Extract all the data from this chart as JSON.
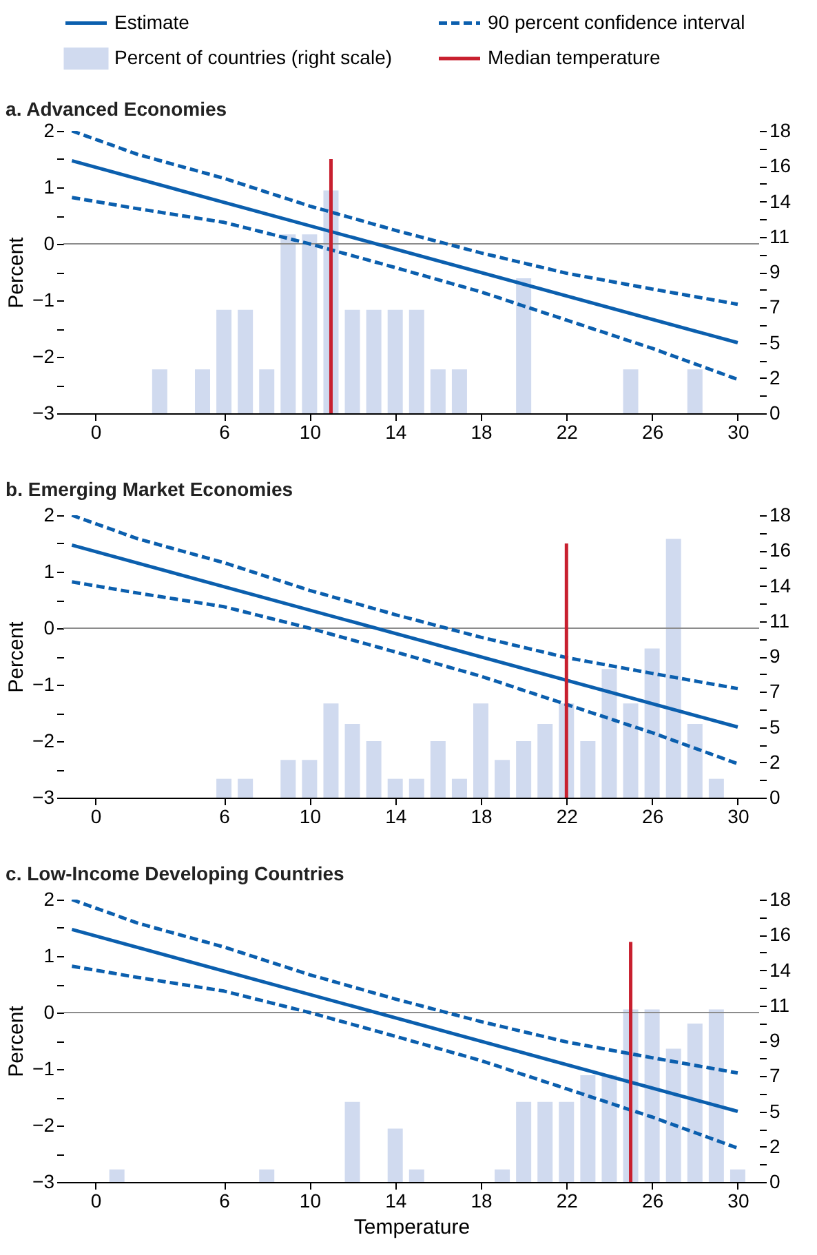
{
  "chart_data": [
    {
      "type": "line",
      "title": "a. Advanced Economies",
      "ylabel": "Percent",
      "legend": "top",
      "xlim": [
        -1.5,
        31
      ],
      "xticks": [
        0,
        6,
        10,
        14,
        18,
        22,
        26,
        30
      ],
      "ylim": [
        -3,
        2
      ],
      "yticks": [
        -3,
        {
          "value": -2.5,
          "label": null
        },
        -2,
        {
          "value": -1.5,
          "label": null
        },
        -1,
        {
          "value": -0.5,
          "label": null
        },
        0,
        {
          "value": 0.5,
          "label": null
        },
        1,
        {
          "value": 1.5,
          "label": null
        },
        2
      ],
      "y2lim": [
        0,
        18
      ],
      "y2ticks": [
        0,
        {
          "value": 1.125,
          "label": null
        },
        {
          "value": 2.25,
          "label": "2"
        },
        {
          "value": 3.375,
          "label": null
        },
        {
          "value": 4.5,
          "label": "5"
        },
        {
          "value": 5.625,
          "label": null
        },
        {
          "value": 6.75,
          "label": "7"
        },
        {
          "value": 7.875,
          "label": null
        },
        9,
        {
          "value": 10.125,
          "label": null
        },
        {
          "value": 11.25,
          "label": "11"
        },
        {
          "value": 12.375,
          "label": null
        },
        {
          "value": 13.5,
          "label": "14"
        },
        {
          "value": 14.625,
          "label": null
        },
        {
          "value": 15.75,
          "label": "16"
        },
        {
          "value": 16.875,
          "label": null
        },
        18
      ],
      "ref_lines": [
        {
          "axis": "y",
          "value": 0,
          "color": "#8c8c8c"
        }
      ],
      "series": [
        {
          "name": "Estimate",
          "color": "#0b5fae",
          "x": [
            -1.1,
            30
          ],
          "values": [
            1.47,
            -1.75
          ]
        },
        {
          "name": "90 percent confidence interval",
          "line_style": "dashed",
          "color": "#0b5fae",
          "x": [
            -1.1,
            2,
            6,
            10,
            14,
            18,
            22,
            26,
            30
          ],
          "values": [
            2.0,
            1.58,
            1.16,
            0.67,
            0.24,
            -0.16,
            -0.52,
            -0.8,
            -1.07
          ]
        },
        {
          "line_style": "dashed",
          "color": "#0b5fae",
          "x": [
            -1.1,
            2,
            6,
            10,
            14,
            18,
            22,
            26,
            30
          ],
          "values": [
            0.82,
            0.62,
            0.38,
            0.0,
            -0.42,
            -0.85,
            -1.35,
            -1.85,
            -2.4
          ]
        },
        {
          "name": "Percent of countries (right scale)",
          "type": "bar",
          "axis": "y2",
          "color": "#d0daef",
          "x": [
            3,
            5,
            6,
            7,
            8,
            9,
            10,
            11,
            12,
            13,
            14,
            15,
            16,
            17,
            20,
            25,
            28
          ],
          "values": [
            2.8,
            2.8,
            6.6,
            6.6,
            2.8,
            11.4,
            11.4,
            14.2,
            6.6,
            6.6,
            6.6,
            6.6,
            2.8,
            2.8,
            8.6,
            2.8,
            2.8
          ]
        },
        {
          "name": "Median temperature",
          "color": "#c8202f",
          "x": [
            11,
            11
          ],
          "values": [
            -3,
            1.5
          ]
        }
      ]
    },
    {
      "type": "line",
      "title": "b. Emerging Market Economies",
      "ylabel": "Percent",
      "xlim": [
        -1.5,
        31
      ],
      "xticks": [
        0,
        6,
        10,
        14,
        18,
        22,
        26,
        30
      ],
      "ylim": [
        -3,
        2
      ],
      "yticks": [
        -3,
        {
          "value": -2.5,
          "label": null
        },
        -2,
        {
          "value": -1.5,
          "label": null
        },
        -1,
        {
          "value": -0.5,
          "label": null
        },
        0,
        {
          "value": 0.5,
          "label": null
        },
        1,
        {
          "value": 1.5,
          "label": null
        },
        2
      ],
      "y2lim": [
        0,
        18
      ],
      "y2ticks": [
        0,
        {
          "value": 1.125,
          "label": null
        },
        {
          "value": 2.25,
          "label": "2"
        },
        {
          "value": 3.375,
          "label": null
        },
        {
          "value": 4.5,
          "label": "5"
        },
        {
          "value": 5.625,
          "label": null
        },
        {
          "value": 6.75,
          "label": "7"
        },
        {
          "value": 7.875,
          "label": null
        },
        9,
        {
          "value": 10.125,
          "label": null
        },
        {
          "value": 11.25,
          "label": "11"
        },
        {
          "value": 12.375,
          "label": null
        },
        {
          "value": 13.5,
          "label": "14"
        },
        {
          "value": 14.625,
          "label": null
        },
        {
          "value": 15.75,
          "label": "16"
        },
        {
          "value": 16.875,
          "label": null
        },
        18
      ],
      "ref_lines": [
        {
          "axis": "y",
          "value": 0,
          "color": "#8c8c8c"
        }
      ],
      "series": [
        {
          "color": "#0b5fae",
          "x": [
            -1.1,
            30
          ],
          "values": [
            1.47,
            -1.75
          ]
        },
        {
          "line_style": "dashed",
          "color": "#0b5fae",
          "x": [
            -1.1,
            2,
            6,
            10,
            14,
            18,
            22,
            26,
            30
          ],
          "values": [
            2.0,
            1.58,
            1.16,
            0.67,
            0.24,
            -0.16,
            -0.52,
            -0.8,
            -1.07
          ]
        },
        {
          "line_style": "dashed",
          "color": "#0b5fae",
          "x": [
            -1.1,
            2,
            6,
            10,
            14,
            18,
            22,
            26,
            30
          ],
          "values": [
            0.82,
            0.62,
            0.38,
            0.0,
            -0.42,
            -0.85,
            -1.35,
            -1.85,
            -2.4
          ]
        },
        {
          "type": "bar",
          "axis": "y2",
          "color": "#d0daef",
          "x": [
            6,
            7,
            9,
            10,
            11,
            12,
            13,
            14,
            15,
            16,
            17,
            18,
            19,
            20,
            21,
            22,
            23,
            24,
            25,
            26,
            27,
            28,
            29
          ],
          "values": [
            1.2,
            1.2,
            2.4,
            2.4,
            6.0,
            4.7,
            3.6,
            1.2,
            1.2,
            3.6,
            1.2,
            6.0,
            2.4,
            3.6,
            4.7,
            6.0,
            3.6,
            8.2,
            6.0,
            9.5,
            16.5,
            4.7,
            1.2
          ]
        },
        {
          "color": "#c8202f",
          "x": [
            22,
            22
          ],
          "values": [
            -3,
            1.5
          ]
        }
      ]
    },
    {
      "type": "line",
      "title": "c. Low-Income Developing Countries",
      "xlabel": "Temperature",
      "ylabel": "Percent",
      "xlim": [
        -1.5,
        31
      ],
      "xticks": [
        0,
        6,
        10,
        14,
        18,
        22,
        26,
        30
      ],
      "ylim": [
        -3,
        2
      ],
      "yticks": [
        -3,
        {
          "value": -2.5,
          "label": null
        },
        -2,
        {
          "value": -1.5,
          "label": null
        },
        -1,
        {
          "value": -0.5,
          "label": null
        },
        0,
        {
          "value": 0.5,
          "label": null
        },
        1,
        {
          "value": 1.5,
          "label": null
        },
        2
      ],
      "y2lim": [
        0,
        18
      ],
      "y2ticks": [
        0,
        {
          "value": 1.125,
          "label": null
        },
        {
          "value": 2.25,
          "label": "2"
        },
        {
          "value": 3.375,
          "label": null
        },
        {
          "value": 4.5,
          "label": "5"
        },
        {
          "value": 5.625,
          "label": null
        },
        {
          "value": 6.75,
          "label": "7"
        },
        {
          "value": 7.875,
          "label": null
        },
        9,
        {
          "value": 10.125,
          "label": null
        },
        {
          "value": 11.25,
          "label": "11"
        },
        {
          "value": 12.375,
          "label": null
        },
        {
          "value": 13.5,
          "label": "14"
        },
        {
          "value": 14.625,
          "label": null
        },
        {
          "value": 15.75,
          "label": "16"
        },
        {
          "value": 16.875,
          "label": null
        },
        18
      ],
      "ref_lines": [
        {
          "axis": "y",
          "value": 0,
          "color": "#8c8c8c"
        }
      ],
      "series": [
        {
          "color": "#0b5fae",
          "x": [
            -1.1,
            30
          ],
          "values": [
            1.47,
            -1.75
          ]
        },
        {
          "line_style": "dashed",
          "color": "#0b5fae",
          "x": [
            -1.1,
            2,
            6,
            10,
            14,
            18,
            22,
            26,
            30
          ],
          "values": [
            2.0,
            1.58,
            1.16,
            0.67,
            0.24,
            -0.16,
            -0.52,
            -0.8,
            -1.07
          ]
        },
        {
          "line_style": "dashed",
          "color": "#0b5fae",
          "x": [
            -1.1,
            2,
            6,
            10,
            14,
            18,
            22,
            26,
            30
          ],
          "values": [
            0.82,
            0.62,
            0.38,
            0.0,
            -0.42,
            -0.85,
            -1.35,
            -1.85,
            -2.4
          ]
        },
        {
          "type": "bar",
          "axis": "y2",
          "color": "#d0daef",
          "x": [
            1,
            8,
            12,
            14,
            15,
            19,
            20,
            21,
            22,
            23,
            24,
            25,
            26,
            27,
            28,
            29,
            30
          ],
          "values": [
            0.8,
            0.8,
            5.1,
            3.4,
            0.8,
            0.8,
            5.1,
            5.1,
            5.1,
            6.8,
            6.8,
            11.0,
            11.0,
            8.5,
            10.1,
            11.0,
            0.8
          ]
        },
        {
          "color": "#c8202f",
          "x": [
            25,
            25
          ],
          "values": [
            -3,
            1.25
          ]
        }
      ]
    }
  ]
}
